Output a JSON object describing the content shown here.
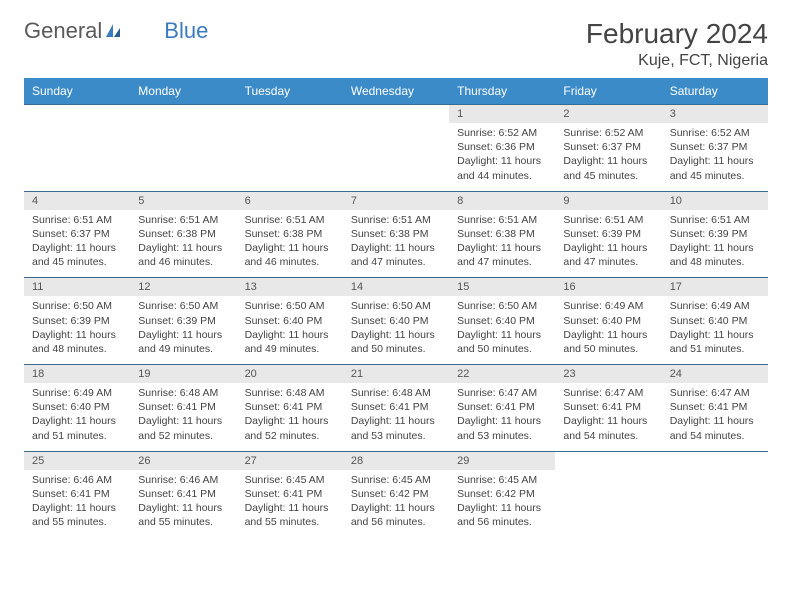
{
  "brand": {
    "part1": "General",
    "part2": "Blue"
  },
  "title": "February 2024",
  "location": "Kuje, FCT, Nigeria",
  "day_headers": [
    "Sunday",
    "Monday",
    "Tuesday",
    "Wednesday",
    "Thursday",
    "Friday",
    "Saturday"
  ],
  "colors": {
    "header_bg": "#3b8bc9",
    "header_text": "#ffffff",
    "num_row_bg": "#e8e8e8",
    "border": "#3b6a8f",
    "text": "#444444"
  },
  "weeks": [
    {
      "days": [
        {
          "empty": true
        },
        {
          "empty": true
        },
        {
          "empty": true
        },
        {
          "empty": true
        },
        {
          "num": "1",
          "sunrise": "Sunrise: 6:52 AM",
          "sunset": "Sunset: 6:36 PM",
          "daylight": "Daylight: 11 hours and 44 minutes."
        },
        {
          "num": "2",
          "sunrise": "Sunrise: 6:52 AM",
          "sunset": "Sunset: 6:37 PM",
          "daylight": "Daylight: 11 hours and 45 minutes."
        },
        {
          "num": "3",
          "sunrise": "Sunrise: 6:52 AM",
          "sunset": "Sunset: 6:37 PM",
          "daylight": "Daylight: 11 hours and 45 minutes."
        }
      ]
    },
    {
      "days": [
        {
          "num": "4",
          "sunrise": "Sunrise: 6:51 AM",
          "sunset": "Sunset: 6:37 PM",
          "daylight": "Daylight: 11 hours and 45 minutes."
        },
        {
          "num": "5",
          "sunrise": "Sunrise: 6:51 AM",
          "sunset": "Sunset: 6:38 PM",
          "daylight": "Daylight: 11 hours and 46 minutes."
        },
        {
          "num": "6",
          "sunrise": "Sunrise: 6:51 AM",
          "sunset": "Sunset: 6:38 PM",
          "daylight": "Daylight: 11 hours and 46 minutes."
        },
        {
          "num": "7",
          "sunrise": "Sunrise: 6:51 AM",
          "sunset": "Sunset: 6:38 PM",
          "daylight": "Daylight: 11 hours and 47 minutes."
        },
        {
          "num": "8",
          "sunrise": "Sunrise: 6:51 AM",
          "sunset": "Sunset: 6:38 PM",
          "daylight": "Daylight: 11 hours and 47 minutes."
        },
        {
          "num": "9",
          "sunrise": "Sunrise: 6:51 AM",
          "sunset": "Sunset: 6:39 PM",
          "daylight": "Daylight: 11 hours and 47 minutes."
        },
        {
          "num": "10",
          "sunrise": "Sunrise: 6:51 AM",
          "sunset": "Sunset: 6:39 PM",
          "daylight": "Daylight: 11 hours and 48 minutes."
        }
      ]
    },
    {
      "days": [
        {
          "num": "11",
          "sunrise": "Sunrise: 6:50 AM",
          "sunset": "Sunset: 6:39 PM",
          "daylight": "Daylight: 11 hours and 48 minutes."
        },
        {
          "num": "12",
          "sunrise": "Sunrise: 6:50 AM",
          "sunset": "Sunset: 6:39 PM",
          "daylight": "Daylight: 11 hours and 49 minutes."
        },
        {
          "num": "13",
          "sunrise": "Sunrise: 6:50 AM",
          "sunset": "Sunset: 6:40 PM",
          "daylight": "Daylight: 11 hours and 49 minutes."
        },
        {
          "num": "14",
          "sunrise": "Sunrise: 6:50 AM",
          "sunset": "Sunset: 6:40 PM",
          "daylight": "Daylight: 11 hours and 50 minutes."
        },
        {
          "num": "15",
          "sunrise": "Sunrise: 6:50 AM",
          "sunset": "Sunset: 6:40 PM",
          "daylight": "Daylight: 11 hours and 50 minutes."
        },
        {
          "num": "16",
          "sunrise": "Sunrise: 6:49 AM",
          "sunset": "Sunset: 6:40 PM",
          "daylight": "Daylight: 11 hours and 50 minutes."
        },
        {
          "num": "17",
          "sunrise": "Sunrise: 6:49 AM",
          "sunset": "Sunset: 6:40 PM",
          "daylight": "Daylight: 11 hours and 51 minutes."
        }
      ]
    },
    {
      "days": [
        {
          "num": "18",
          "sunrise": "Sunrise: 6:49 AM",
          "sunset": "Sunset: 6:40 PM",
          "daylight": "Daylight: 11 hours and 51 minutes."
        },
        {
          "num": "19",
          "sunrise": "Sunrise: 6:48 AM",
          "sunset": "Sunset: 6:41 PM",
          "daylight": "Daylight: 11 hours and 52 minutes."
        },
        {
          "num": "20",
          "sunrise": "Sunrise: 6:48 AM",
          "sunset": "Sunset: 6:41 PM",
          "daylight": "Daylight: 11 hours and 52 minutes."
        },
        {
          "num": "21",
          "sunrise": "Sunrise: 6:48 AM",
          "sunset": "Sunset: 6:41 PM",
          "daylight": "Daylight: 11 hours and 53 minutes."
        },
        {
          "num": "22",
          "sunrise": "Sunrise: 6:47 AM",
          "sunset": "Sunset: 6:41 PM",
          "daylight": "Daylight: 11 hours and 53 minutes."
        },
        {
          "num": "23",
          "sunrise": "Sunrise: 6:47 AM",
          "sunset": "Sunset: 6:41 PM",
          "daylight": "Daylight: 11 hours and 54 minutes."
        },
        {
          "num": "24",
          "sunrise": "Sunrise: 6:47 AM",
          "sunset": "Sunset: 6:41 PM",
          "daylight": "Daylight: 11 hours and 54 minutes."
        }
      ]
    },
    {
      "days": [
        {
          "num": "25",
          "sunrise": "Sunrise: 6:46 AM",
          "sunset": "Sunset: 6:41 PM",
          "daylight": "Daylight: 11 hours and 55 minutes."
        },
        {
          "num": "26",
          "sunrise": "Sunrise: 6:46 AM",
          "sunset": "Sunset: 6:41 PM",
          "daylight": "Daylight: 11 hours and 55 minutes."
        },
        {
          "num": "27",
          "sunrise": "Sunrise: 6:45 AM",
          "sunset": "Sunset: 6:41 PM",
          "daylight": "Daylight: 11 hours and 55 minutes."
        },
        {
          "num": "28",
          "sunrise": "Sunrise: 6:45 AM",
          "sunset": "Sunset: 6:42 PM",
          "daylight": "Daylight: 11 hours and 56 minutes."
        },
        {
          "num": "29",
          "sunrise": "Sunrise: 6:45 AM",
          "sunset": "Sunset: 6:42 PM",
          "daylight": "Daylight: 11 hours and 56 minutes."
        },
        {
          "empty": true
        },
        {
          "empty": true
        }
      ]
    }
  ]
}
